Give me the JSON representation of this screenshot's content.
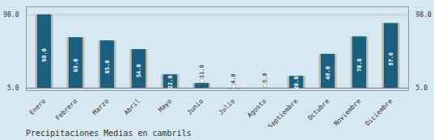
{
  "chart_data": {
    "type": "bar",
    "title": "Precipitaciones Medias en cambrils",
    "categories": [
      "Enero",
      "Febrero",
      "Marzo",
      "Abril",
      "Mayo",
      "Junio",
      "Julio",
      "Agosto",
      "Septiembre",
      "Octubre",
      "Noviembre",
      "Diciembre"
    ],
    "values": [
      98.0,
      69.0,
      65.0,
      54.0,
      22.0,
      11.0,
      4.0,
      5.0,
      20.0,
      48.0,
      70.0,
      87.0
    ],
    "value_labels": [
      "98.0",
      "69.0",
      "65.0",
      "54.0",
      "22.0",
      "11.0",
      "4.0",
      "5.0",
      "20.0",
      "48.0",
      "70.0",
      "87.0"
    ],
    "data_labels": true,
    "color": "#1b6080",
    "ylim": [
      2,
      108
    ],
    "yticks": [
      {
        "value": 5,
        "label": "5.0"
      },
      {
        "value": 98,
        "label": "98.0"
      }
    ],
    "grid": true
  }
}
